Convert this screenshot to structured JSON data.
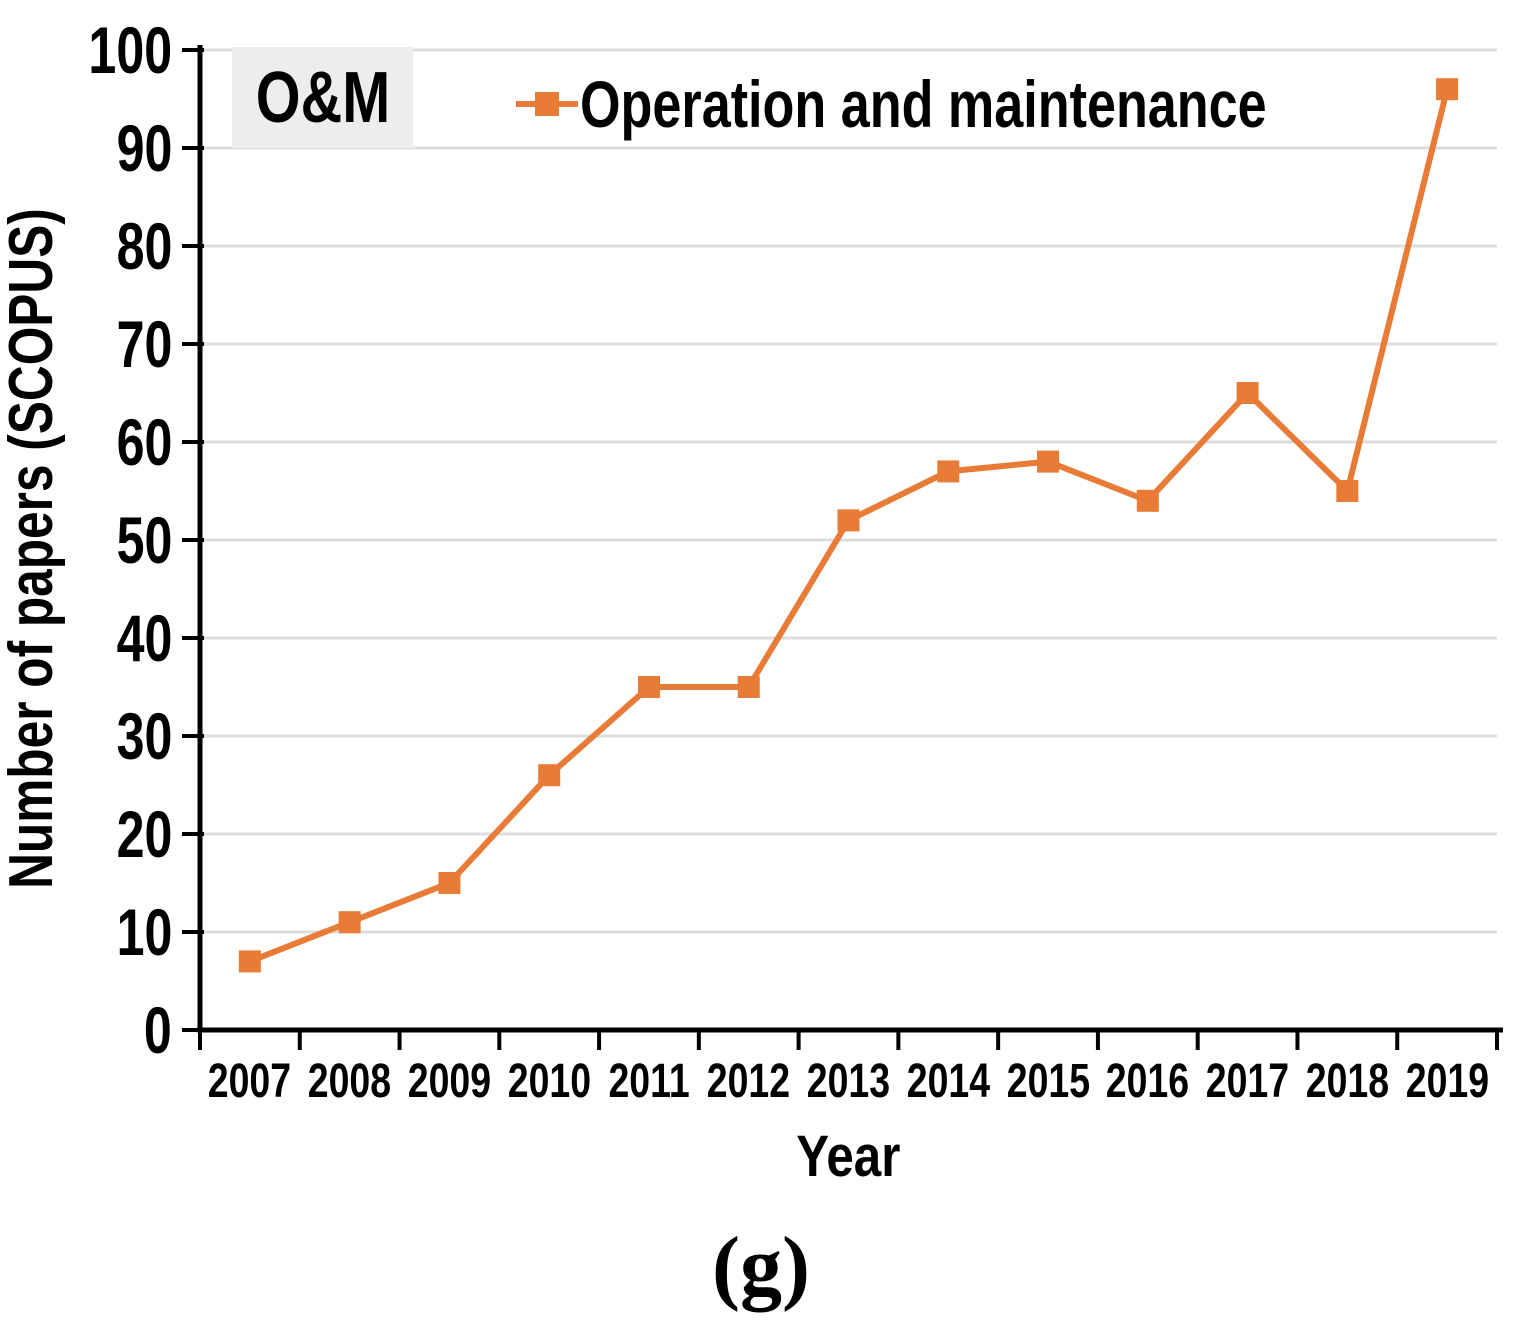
{
  "colors": {
    "accent": "#E87B35",
    "grid": "#DEDEDE",
    "axis": "#000000",
    "panel_box_bg": "#EDEDED",
    "text": "#000000"
  },
  "panel_label": "O&M",
  "legend": {
    "label": "Operation and maintenance"
  },
  "caption": "(g)",
  "chart_data": {
    "type": "line",
    "title": "",
    "x": [
      "2007",
      "2008",
      "2009",
      "2010",
      "2011",
      "2012",
      "2013",
      "2014",
      "2015",
      "2016",
      "2017",
      "2018",
      "2019"
    ],
    "series": [
      {
        "name": "Operation and maintenance",
        "values": [
          7,
          11,
          15,
          26,
          35,
          35,
          52,
          57,
          58,
          54,
          65,
          55,
          96
        ],
        "marker": "square"
      }
    ],
    "xlabel": "Year",
    "ylabel": "Number of papers (SCOPUS)",
    "ylim": [
      0,
      100
    ],
    "ytick_step": 10,
    "grid": true,
    "legend_position": "top-inside"
  }
}
